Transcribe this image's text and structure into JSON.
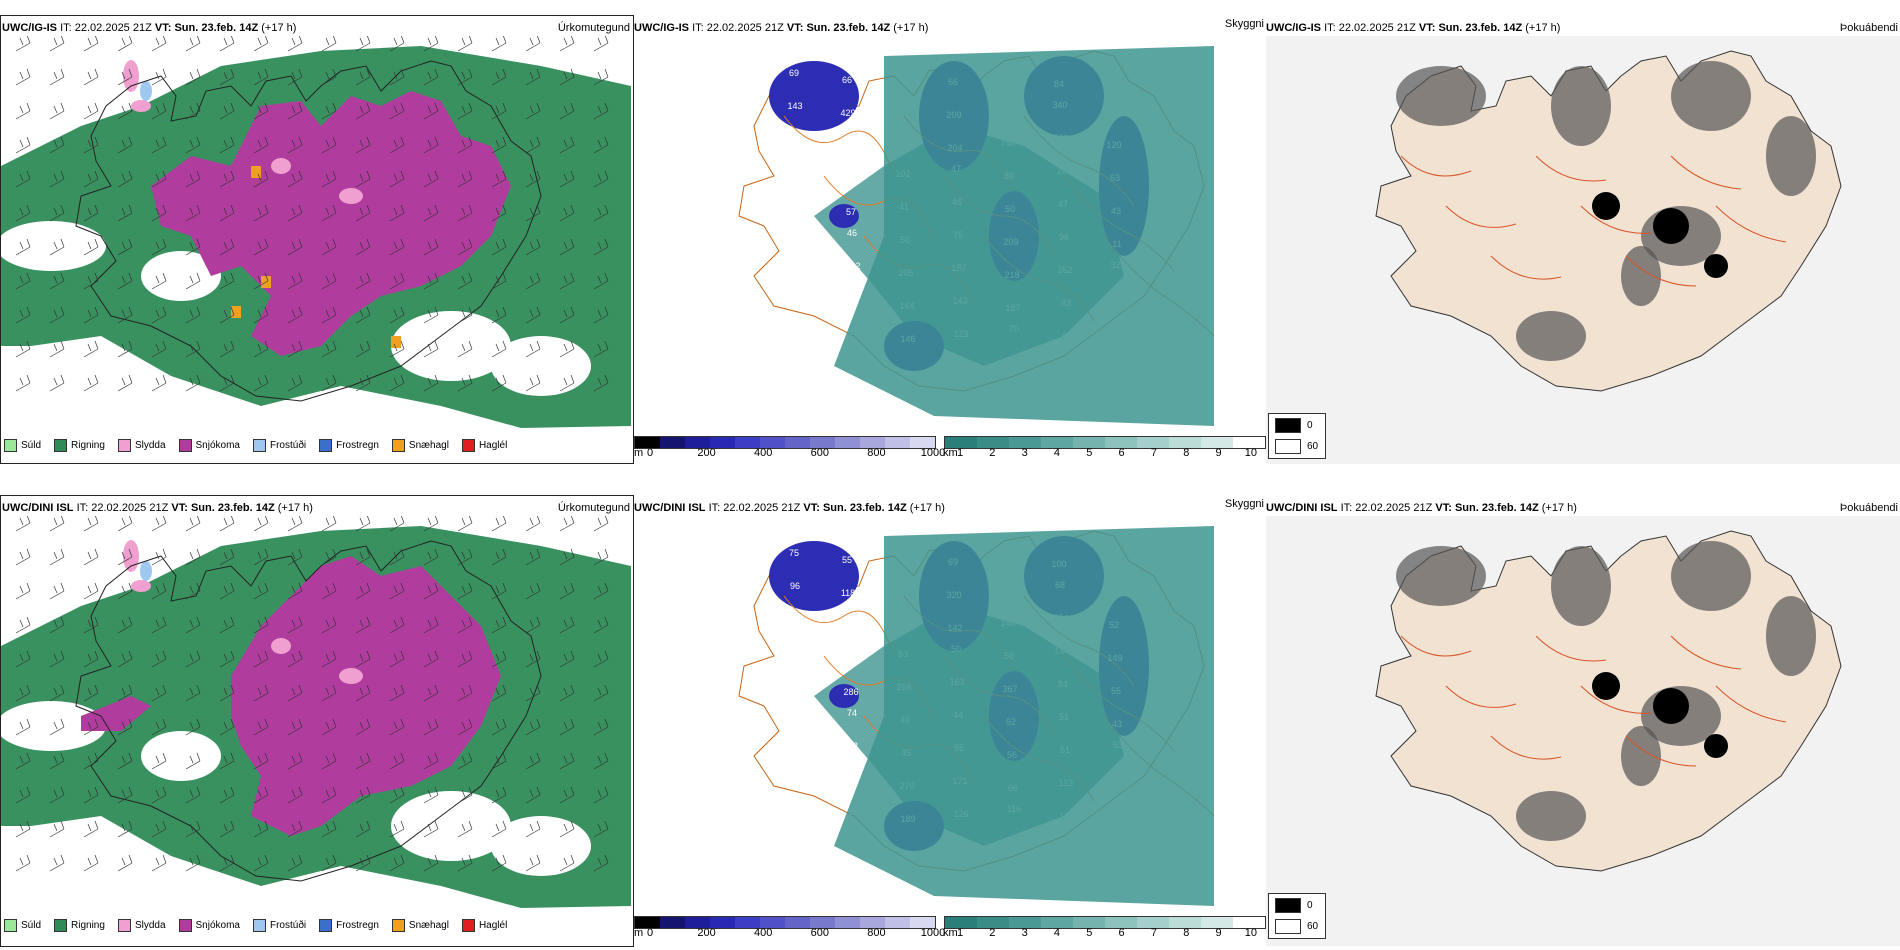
{
  "rows": [
    {
      "model": "UWC/IG-IS",
      "it_label": "IT:",
      "it_value": "22.02.2025 21Z",
      "vt_label": "VT:",
      "vt_value": "Sun. 23.feb. 14Z",
      "lead": "(+17 h)"
    },
    {
      "model": "UWC/DINI ISL",
      "it_label": "IT:",
      "it_value": "22.02.2025 21Z",
      "vt_label": "VT:",
      "vt_value": "Sun. 23.feb. 14Z",
      "lead": "(+17 h)"
    }
  ],
  "panels": {
    "precip_type": "Úrkomutegund",
    "cloud_base": "Skyggni",
    "fog_index": "Þokuábendi"
  },
  "precip_legend": [
    {
      "label": "Súld",
      "color": "#9be89b"
    },
    {
      "label": "Rigning",
      "color": "#2e8b57"
    },
    {
      "label": "Slydda",
      "color": "#f0a0d0"
    },
    {
      "label": "Snjókoma",
      "color": "#b03c9e"
    },
    {
      "label": "Frostúði",
      "color": "#9ec8f0"
    },
    {
      "label": "Frostregn",
      "color": "#3a70c8"
    },
    {
      "label": "Snæhagl",
      "color": "#f0a020"
    },
    {
      "label": "Haglél",
      "color": "#e02020"
    }
  ],
  "height_scale": {
    "unit": "m",
    "ticks": [
      "0",
      "200",
      "400",
      "600",
      "800",
      "1000"
    ],
    "colors": [
      "#000000",
      "#14146e",
      "#1e1e9a",
      "#2828b4",
      "#3c3cc4",
      "#5050c8",
      "#6464c8",
      "#7878cc",
      "#9090d4",
      "#a8a8dc",
      "#c0c0e6",
      "#d8d8f0"
    ]
  },
  "visibility_scale": {
    "unit": "km",
    "ticks": [
      "1",
      "2",
      "3",
      "4",
      "5",
      "6",
      "7",
      "8",
      "9",
      "10"
    ],
    "colors": [
      "#2a7f7a",
      "#3a8c87",
      "#4a9994",
      "#5ea6a1",
      "#74b3ae",
      "#8cc1bc",
      "#a4cfca",
      "#bcdcd8",
      "#d4e9e6",
      "#ffffff"
    ]
  },
  "fog_legend": [
    {
      "label": "0",
      "color": "#000000"
    },
    {
      "label": "60",
      "color": "#ffffff"
    }
  ],
  "cloud_labels": [
    [
      "69",
      "66",
      "46",
      "56",
      "57",
      "84",
      "106",
      "143",
      "429",
      "31",
      "209",
      "89",
      "340",
      "80",
      "87",
      "413",
      "183",
      "204",
      "740",
      "230",
      "120",
      "143",
      "95",
      "102",
      "47",
      "89",
      "26",
      "53",
      "40",
      "57",
      "41",
      "46",
      "50",
      "47",
      "43",
      "55",
      "46",
      "50",
      "75",
      "209",
      "96",
      "11",
      "205",
      "192",
      "205",
      "187",
      "218",
      "252",
      "325",
      "241",
      "248",
      "164",
      "143",
      "187",
      "83",
      "63",
      "99",
      "293",
      "146",
      "123",
      "70",
      "61",
      "27"
    ],
    [
      "75",
      "55",
      "68",
      "69",
      "62",
      "100",
      "177",
      "96",
      "118",
      "194",
      "320",
      "95",
      "68",
      "67",
      "102",
      "131",
      "133",
      "142",
      "148",
      "354",
      "52",
      "120",
      "71",
      "63",
      "50",
      "56",
      "144",
      "149",
      "141",
      "286",
      "266",
      "163",
      "367",
      "84",
      "55",
      "62",
      "74",
      "49",
      "44",
      "52",
      "51",
      "43",
      "45",
      "38",
      "45",
      "55",
      "56",
      "51",
      "53",
      "122",
      "106",
      "270",
      "171",
      "66",
      "113",
      "134",
      "129",
      "131",
      "189",
      "126",
      "116",
      "122",
      "96"
    ]
  ]
}
